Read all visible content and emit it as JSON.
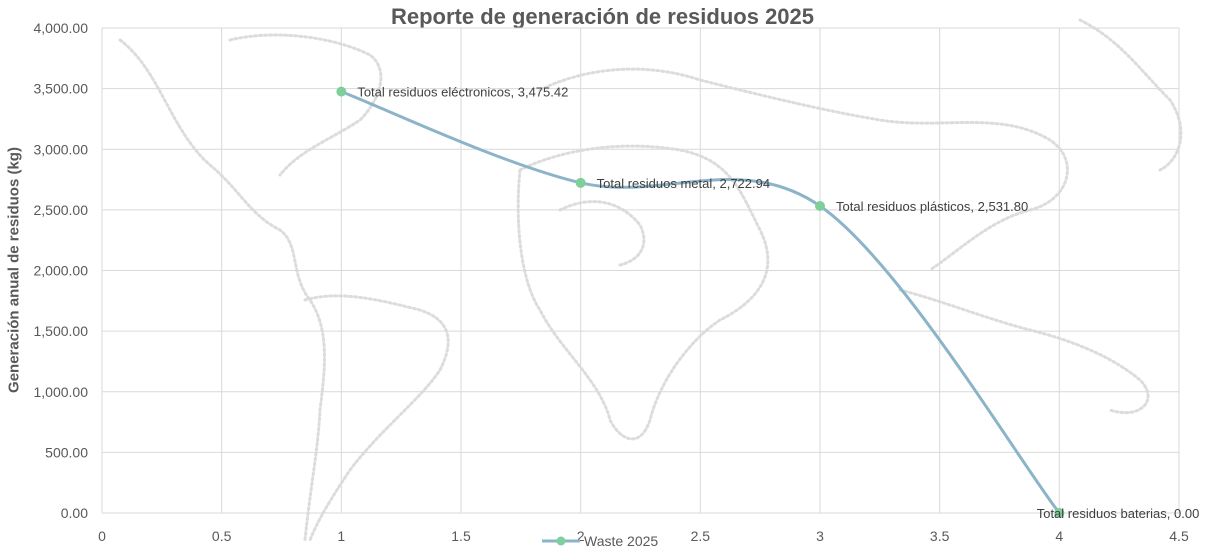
{
  "chart_data": {
    "type": "scatter",
    "title": "Reporte de generación de residuos 2025",
    "xlabel": "",
    "ylabel": "Generación anual de residuos (kg)",
    "xlim": [
      0,
      4.5
    ],
    "ylim": [
      0,
      4000
    ],
    "x_ticks": [
      "0",
      "0.5",
      "1",
      "1.5",
      "2",
      "2.5",
      "3",
      "3.5",
      "4",
      "4.5"
    ],
    "y_ticks": [
      "0.00",
      "500.00",
      "1,000.00",
      "1,500.00",
      "2,000.00",
      "2,500.00",
      "3,000.00",
      "3,500.00",
      "4,000.00"
    ],
    "grid": true,
    "smooth_line": true,
    "legend_position": "bottom",
    "series": [
      {
        "name": "Waste 2025",
        "color": "#8cb4c9",
        "marker_color": "#7fcf9b",
        "points": [
          {
            "x": 1,
            "y": 3475.42,
            "label": "Total residuos eléctronicos, 3,475.42"
          },
          {
            "x": 2,
            "y": 2722.94,
            "label": "Total residuos metal, 2,722.94"
          },
          {
            "x": 3,
            "y": 2531.8,
            "label": "Total residuos plásticos, 2,531.80"
          },
          {
            "x": 4,
            "y": 0.0,
            "label": "Total residuos baterias, 0.00"
          }
        ]
      }
    ]
  }
}
